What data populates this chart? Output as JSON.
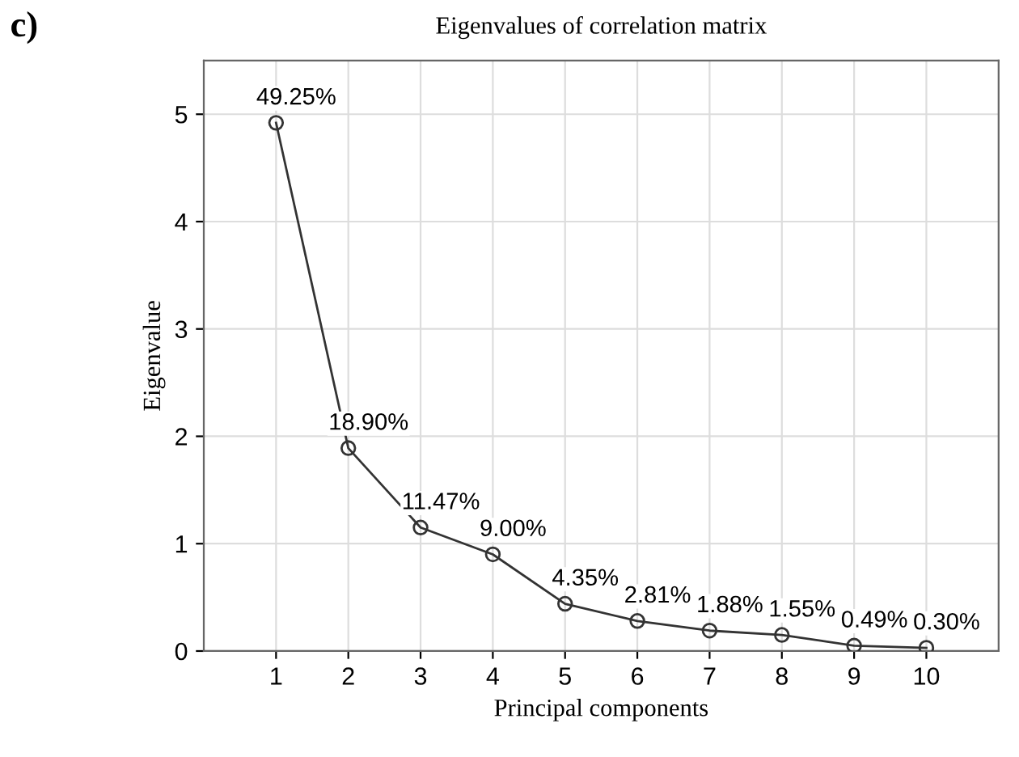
{
  "chart_data": {
    "type": "line",
    "title": "Eigenvalues of correlation matrix",
    "xlabel": "Principal components",
    "ylabel": "Eigenvalue",
    "annotations": [
      "c)",
      {
        "text": "49.25%",
        "x": 1,
        "y": 4.92
      },
      {
        "text": "18.90%",
        "x": 2,
        "y": 1.89
      },
      {
        "text": "11.47%",
        "x": 3,
        "y": 1.15
      },
      {
        "text": "9.00%",
        "x": 4,
        "y": 0.9
      },
      {
        "text": "4.35%",
        "x": 5,
        "y": 0.44
      },
      {
        "text": "2.81%",
        "x": 6,
        "y": 0.28
      },
      {
        "text": "1.88%",
        "x": 7,
        "y": 0.19
      },
      {
        "text": "1.55%",
        "x": 8,
        "y": 0.15
      },
      {
        "text": "0.49%",
        "x": 9,
        "y": 0.05
      },
      {
        "text": "0.30%",
        "x": 10,
        "y": 0.03
      }
    ],
    "x": [
      1,
      2,
      3,
      4,
      5,
      6,
      7,
      8,
      9,
      10
    ],
    "values": [
      4.92,
      1.89,
      1.15,
      0.9,
      0.44,
      0.28,
      0.19,
      0.15,
      0.05,
      0.03
    ],
    "color": "#333333",
    "marker": "circle",
    "line_style": "solid",
    "xlim": [
      0,
      11
    ],
    "xticks": [
      1,
      2,
      3,
      4,
      5,
      6,
      7,
      8,
      9,
      10
    ],
    "ylim": [
      0,
      5.5
    ],
    "yticks": [
      0,
      1,
      2,
      3,
      4,
      5
    ],
    "grid": true
  }
}
